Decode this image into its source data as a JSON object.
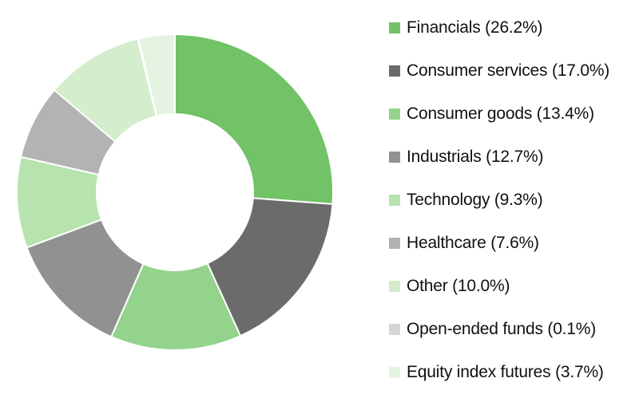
{
  "chart_data": {
    "type": "pie",
    "donut": true,
    "legend_position": "right",
    "slices": [
      {
        "label": "Financials (26.2%)",
        "value": 26.2,
        "color": "#72c267"
      },
      {
        "label": "Consumer services (17.0%)",
        "value": 17.0,
        "color": "#6b6b6b"
      },
      {
        "label": "Consumer goods (13.4%)",
        "value": 13.4,
        "color": "#93d38b"
      },
      {
        "label": "Industrials (12.7%)",
        "value": 12.7,
        "color": "#919191"
      },
      {
        "label": "Technology (9.3%)",
        "value": 9.3,
        "color": "#b6e3ae"
      },
      {
        "label": "Healthcare (7.6%)",
        "value": 7.6,
        "color": "#b3b3b3"
      },
      {
        "label": "Other (10.0%)",
        "value": 10.0,
        "color": "#d3edcd"
      },
      {
        "label": "Open-ended funds (0.1%)",
        "value": 0.1,
        "color": "#d6d6d6"
      },
      {
        "label": "Equity index futures (3.7%)",
        "value": 3.7,
        "color": "#e4f4e0"
      }
    ]
  }
}
